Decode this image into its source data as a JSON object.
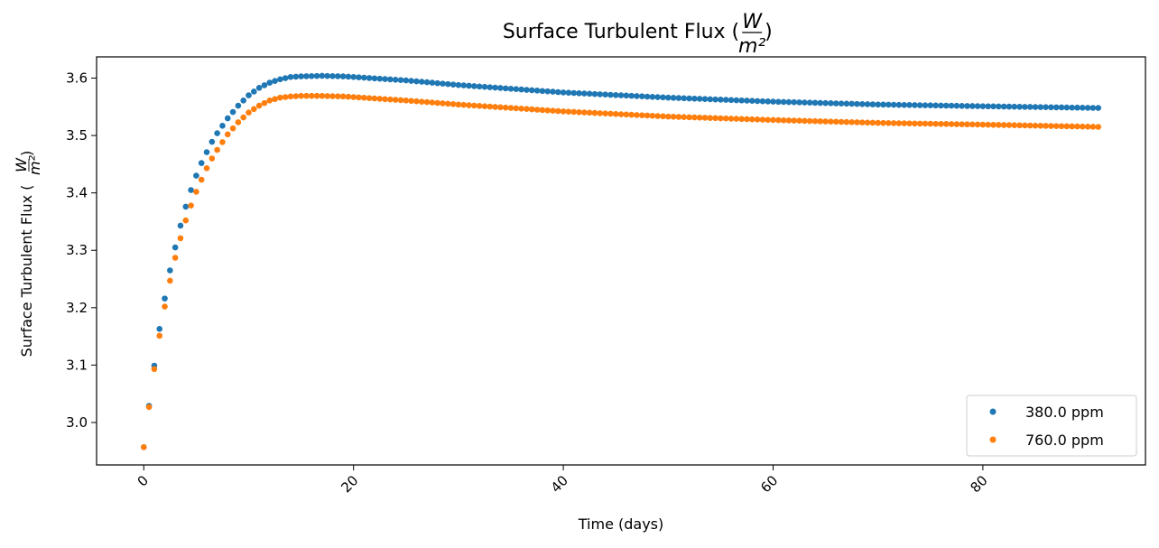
{
  "chart_data": {
    "type": "scatter",
    "title_main": "Surface Turbulent Flux (",
    "title_frac_num": "W",
    "title_frac_den": "m²",
    "title_close": ")",
    "xlabel": "Time (days)",
    "ylabel_main": "Surface Turbulent Flux (",
    "ylabel_frac_num": "W",
    "ylabel_frac_den": "m²",
    "ylabel_close": ")",
    "xlim": [
      -4.5,
      95.5
    ],
    "ylim": [
      2.926,
      3.637
    ],
    "xticks": [
      0,
      20,
      40,
      60,
      80
    ],
    "yticks": [
      3.0,
      3.1,
      3.2,
      3.3,
      3.4,
      3.5,
      3.6
    ],
    "ytick_labels": [
      "3.0",
      "3.1",
      "3.2",
      "3.3",
      "3.4",
      "3.5",
      "3.6"
    ],
    "x_sample_spacing": 0.5,
    "x_start": 0,
    "x_end": 91,
    "legend_position": "bottom-right",
    "series": [
      {
        "name": "380.0 ppm",
        "color": "#1f77b4",
        "anchors_x": [
          0,
          0.5,
          1,
          1.5,
          2,
          2.5,
          3,
          3.5,
          4,
          4.5,
          5,
          5.5,
          6,
          6.5,
          7,
          8,
          9,
          10,
          11,
          12,
          13,
          14,
          15,
          17,
          19,
          20,
          25,
          30,
          40,
          50,
          60,
          70,
          80,
          91
        ],
        "anchors_y": [
          2.957,
          3.029,
          3.099,
          3.163,
          3.216,
          3.265,
          3.305,
          3.343,
          3.376,
          3.405,
          3.43,
          3.452,
          3.471,
          3.489,
          3.504,
          3.53,
          3.552,
          3.57,
          3.583,
          3.592,
          3.598,
          3.602,
          3.603,
          3.604,
          3.603,
          3.602,
          3.596,
          3.588,
          3.575,
          3.566,
          3.559,
          3.554,
          3.551,
          3.548
        ]
      },
      {
        "name": "760.0 ppm",
        "color": "#ff7f0e",
        "anchors_x": [
          0,
          0.5,
          1,
          1.5,
          2,
          2.5,
          3,
          3.5,
          4,
          4.5,
          5,
          5.5,
          6,
          6.5,
          7,
          8,
          9,
          10,
          11,
          12,
          13,
          14,
          15,
          17,
          19,
          20,
          25,
          30,
          40,
          50,
          60,
          70,
          80,
          91
        ],
        "anchors_y": [
          2.957,
          3.027,
          3.093,
          3.151,
          3.202,
          3.247,
          3.287,
          3.321,
          3.352,
          3.378,
          3.402,
          3.423,
          3.443,
          3.46,
          3.475,
          3.502,
          3.523,
          3.54,
          3.552,
          3.561,
          3.566,
          3.568,
          3.569,
          3.569,
          3.568,
          3.567,
          3.561,
          3.554,
          3.542,
          3.533,
          3.527,
          3.522,
          3.519,
          3.515
        ]
      }
    ]
  }
}
